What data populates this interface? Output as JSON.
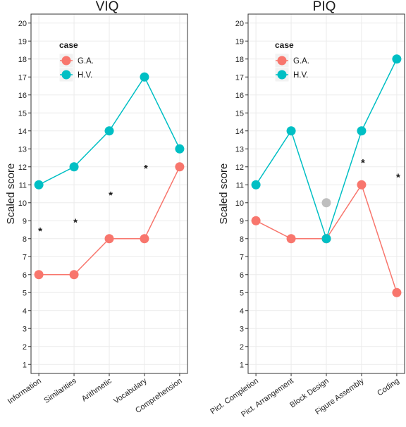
{
  "chart_data": [
    {
      "type": "line",
      "title": "VIQ",
      "xlabel": "",
      "ylabel": "Scaled score",
      "ylim": [
        0.5,
        20.5
      ],
      "yticks": [
        "1",
        "2",
        "3",
        "4",
        "5",
        "6",
        "7",
        "8",
        "9",
        "10",
        "11",
        "12",
        "13",
        "14",
        "15",
        "16",
        "17",
        "18",
        "19",
        "20"
      ],
      "categories": [
        "Information",
        "Similarities",
        "Arithmetic",
        "Vocabulary",
        "Comprehension"
      ],
      "legend": {
        "title": "case",
        "position": "top-left"
      },
      "series": [
        {
          "name": "G.A.",
          "color": "#F8766D",
          "values": [
            6,
            6,
            8,
            8,
            12
          ]
        },
        {
          "name": "H.V.",
          "color": "#00BFC4",
          "values": [
            11,
            12,
            14,
            17,
            13
          ]
        }
      ],
      "annotations": [
        {
          "text": "*",
          "category": "Information",
          "y": 8.5
        },
        {
          "text": "*",
          "category": "Similarities",
          "y": 9
        },
        {
          "text": "*",
          "category": "Arithmetic",
          "y": 10.5
        },
        {
          "text": "*",
          "category": "Vocabulary",
          "y": 12
        }
      ],
      "extra_points": []
    },
    {
      "type": "line",
      "title": "PIQ",
      "xlabel": "",
      "ylabel": "Scaled score",
      "ylim": [
        0.5,
        20.5
      ],
      "yticks": [
        "1",
        "2",
        "3",
        "4",
        "5",
        "6",
        "7",
        "8",
        "9",
        "10",
        "11",
        "12",
        "13",
        "14",
        "15",
        "16",
        "17",
        "18",
        "19",
        "20"
      ],
      "categories": [
        "Pict. Completion",
        "Pict. Arrangement",
        "Block Design",
        "Figure Assembly",
        "Coding"
      ],
      "legend": {
        "title": "case",
        "position": "top-left"
      },
      "series": [
        {
          "name": "G.A.",
          "color": "#F8766D",
          "values": [
            9,
            8,
            8,
            11,
            5
          ]
        },
        {
          "name": "H.V.",
          "color": "#00BFC4",
          "values": [
            11,
            14,
            8,
            14,
            18
          ]
        }
      ],
      "annotations": [
        {
          "text": "*",
          "category": "Figure Assembly",
          "y": 12.3
        },
        {
          "text": "*",
          "category": "Coding",
          "y": 11.5
        }
      ],
      "extra_points": [
        {
          "category": "Block Design",
          "y": 10,
          "color": "#BEBEBE"
        }
      ]
    }
  ]
}
